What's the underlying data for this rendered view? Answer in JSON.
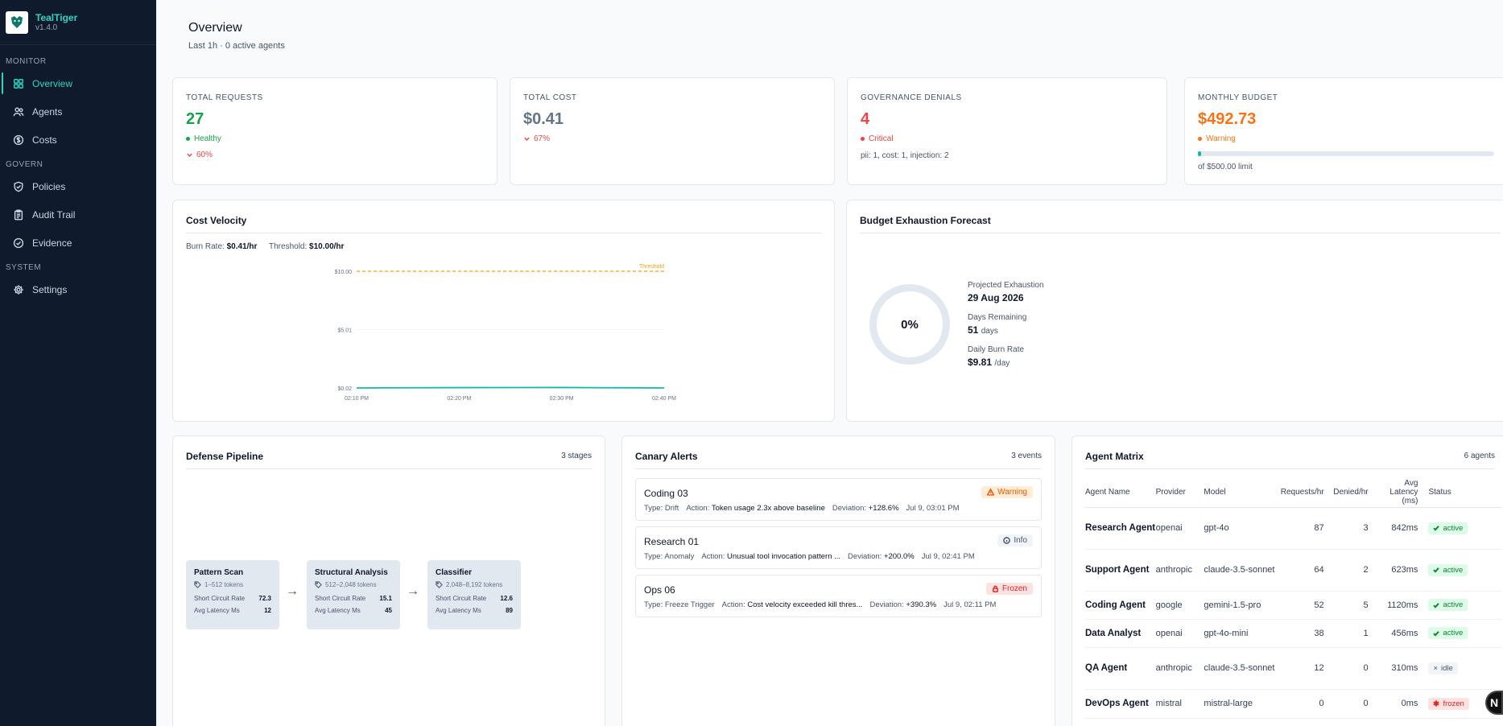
{
  "brand": {
    "name": "TealTiger",
    "version": "v1.4.0",
    "logo_text": "TealTiger"
  },
  "nav": {
    "sections": [
      {
        "label": "MONITOR",
        "items": [
          {
            "label": "Overview",
            "icon": "grid-icon"
          },
          {
            "label": "Agents",
            "icon": "users-icon"
          },
          {
            "label": "Costs",
            "icon": "dollar-icon"
          }
        ]
      },
      {
        "label": "GOVERN",
        "items": [
          {
            "label": "Policies",
            "icon": "shield-icon"
          },
          {
            "label": "Audit Trail",
            "icon": "clipboard-icon"
          },
          {
            "label": "Evidence",
            "icon": "check-circle-icon"
          }
        ]
      },
      {
        "label": "SYSTEM",
        "items": [
          {
            "label": "Settings",
            "icon": "gear-icon"
          }
        ]
      }
    ],
    "active": "Overview"
  },
  "header": {
    "title": "Overview",
    "subtitle": "Last 1h · 0 active agents"
  },
  "kpis": [
    {
      "label": "TOTAL REQUESTS",
      "value": "27",
      "status": "Healthy",
      "trend": "60%",
      "color": "#16a34a"
    },
    {
      "label": "TOTAL COST",
      "value": "$0.41",
      "trend": "67%",
      "color": "#64748b"
    },
    {
      "label": "GOVERNANCE DENIALS",
      "value": "4",
      "status": "Critical",
      "note": "pii: 1, cost: 1, injection: 2",
      "color": "#ef4444"
    },
    {
      "label": "MONTHLY BUDGET",
      "value": "$492.73",
      "status": "Warning",
      "note": "of $500.00 limit",
      "progress": 0.01,
      "color": "#f97316"
    }
  ],
  "cost_velocity": {
    "title": "Cost Velocity",
    "burn_rate_label": "Burn Rate:",
    "burn_rate": "$0.41/hr",
    "threshold_label": "Threshold:",
    "threshold": "$10.00/hr",
    "threshold_marker": "Threshold"
  },
  "chart_data": {
    "type": "line",
    "x": [
      "02:10 PM",
      "02:20 PM",
      "02:30 PM",
      "02:40 PM"
    ],
    "series": [
      {
        "values": [
          0.02,
          0.05,
          0.06,
          0.02
        ]
      }
    ],
    "threshold": 10.0,
    "yticks": [
      "$10.00",
      "$5.01",
      "$0.02"
    ],
    "ylim": [
      0.02,
      10.0
    ],
    "grid": true
  },
  "forecast": {
    "title": "Budget Exhaustion Forecast",
    "percent": "0%",
    "projected_label": "Projected Exhaustion",
    "projected": "29 Aug 2026",
    "days_label": "Days Remaining",
    "days": "51",
    "days_unit": "days",
    "burn_label": "Daily Burn Rate",
    "burn": "$9.81",
    "burn_unit": "/day"
  },
  "pipeline": {
    "title": "Defense Pipeline",
    "count": "3 stages",
    "stages": [
      {
        "name": "Pattern Scan",
        "tokens": "1–512 tokens",
        "scr_label": "Short Circuit Rate",
        "scr": "72.3",
        "lat_label": "Avg Latency Ms",
        "lat": "12"
      },
      {
        "name": "Structural Analysis",
        "tokens": "512–2,048 tokens",
        "scr_label": "Short Circuit Rate",
        "scr": "15.1",
        "lat_label": "Avg Latency Ms",
        "lat": "45"
      },
      {
        "name": "Classifier",
        "tokens": "2,048–8,192 tokens",
        "scr_label": "Short Circuit Rate",
        "scr": "12.6",
        "lat_label": "Avg Latency Ms",
        "lat": "89"
      }
    ]
  },
  "canary": {
    "title": "Canary Alerts",
    "count": "3 events",
    "alerts": [
      {
        "title": "Coding 03",
        "badge": "Warning",
        "type": "Drift",
        "action": "Token usage 2.3x above baseline",
        "deviation": "+128.6%",
        "time": "Jul 9, 03:01 PM"
      },
      {
        "title": "Research 01",
        "badge": "Info",
        "type": "Anomaly",
        "action": "Unusual tool invocation pattern ...",
        "deviation": "+200.0%",
        "time": "Jul 9, 02:41 PM"
      },
      {
        "title": "Ops 06",
        "badge": "Frozen",
        "type": "Freeze Trigger",
        "action": "Cost velocity exceeded kill thres...",
        "deviation": "+390.3%",
        "time": "Jul 9, 02:11 PM"
      }
    ],
    "labels": {
      "type": "Type:",
      "action": "Action:",
      "deviation": "Deviation:"
    }
  },
  "matrix": {
    "title": "Agent Matrix",
    "count": "6 agents",
    "columns": [
      "Agent Name",
      "Provider",
      "Model",
      "Requests/hr",
      "Denied/hr",
      "Avg Latency (ms)",
      "Status"
    ],
    "rows": [
      {
        "name": "Research Agent",
        "provider": "openai",
        "model": "gpt-4o",
        "req": "87",
        "denied": "3",
        "latency": "842ms",
        "status": "active"
      },
      {
        "name": "Support Agent",
        "provider": "anthropic",
        "model": "claude-3.5-sonnet",
        "req": "64",
        "denied": "2",
        "latency": "623ms",
        "status": "active"
      },
      {
        "name": "Coding Agent",
        "provider": "google",
        "model": "gemini-1.5-pro",
        "req": "52",
        "denied": "5",
        "latency": "1120ms",
        "status": "active"
      },
      {
        "name": "Data Analyst",
        "provider": "openai",
        "model": "gpt-4o-mini",
        "req": "38",
        "denied": "1",
        "latency": "456ms",
        "status": "active"
      },
      {
        "name": "QA Agent",
        "provider": "anthropic",
        "model": "claude-3.5-sonnet",
        "req": "12",
        "denied": "0",
        "latency": "310ms",
        "status": "idle"
      },
      {
        "name": "DevOps Agent",
        "provider": "mistral",
        "model": "mistral-large",
        "req": "0",
        "denied": "0",
        "latency": "0ms",
        "status": "frozen"
      }
    ]
  },
  "fab": {
    "label": "N"
  }
}
